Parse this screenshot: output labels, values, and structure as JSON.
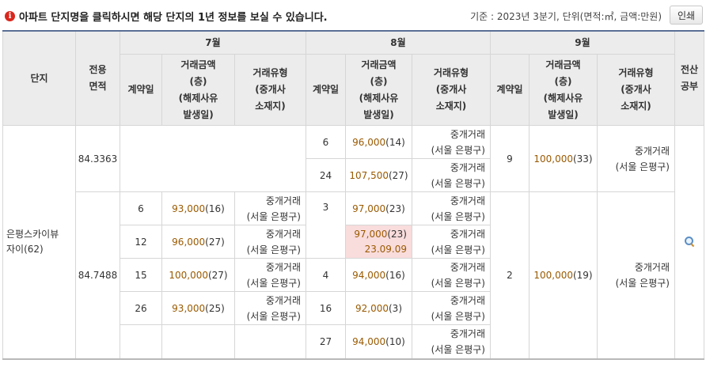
{
  "notice": "아파트 단지명을 클릭하시면 해당 단지의 1년 정보를 보실 수 있습니다.",
  "basis": "기준 : 2023년 3분기, 단위(면적:㎡, 금액:만원)",
  "print_label": "인쇄",
  "icons": {
    "notice": "info-icon",
    "detail": "magnifier-icon"
  },
  "header": {
    "complex": "단지",
    "area": "전용\n면적",
    "months": [
      "7월",
      "8월",
      "9월"
    ],
    "contract_day": "계약일",
    "amount": "거래금액\n(층)\n(해제사유\n발생일)",
    "deal_type": "거래유형\n(중개사\n소재지)",
    "public": "전산\n공부"
  },
  "complex_name": "은평스카이뷰\n자이(62)",
  "group1": {
    "area": "84.3363",
    "aug": [
      {
        "day": "6",
        "price": "96,000",
        "floor": "(14)",
        "type": "중개거래\n(서울 은평구)"
      },
      {
        "day": "24",
        "price": "107,500",
        "floor": "(27)",
        "type": "중개거래\n(서울 은평구)"
      }
    ],
    "sep": {
      "day": "9",
      "price": "100,000",
      "floor": "(33)",
      "type": "중개거래\n(서울 은평구)"
    }
  },
  "group2": {
    "area": "84.7488",
    "jul": [
      {
        "day": "6",
        "price": "93,000",
        "floor": "(16)",
        "type": "중개거래\n(서울 은평구)"
      },
      {
        "day": "12",
        "price": "96,000",
        "floor": "(27)",
        "type": "중개거래\n(서울 은평구)"
      },
      {
        "day": "15",
        "price": "100,000",
        "floor": "(27)",
        "type": "중개거래\n(서울 은평구)"
      },
      {
        "day": "26",
        "price": "93,000",
        "floor": "(25)",
        "type": "중개거래\n(서울 은평구)"
      }
    ],
    "aug": [
      {
        "day": "3",
        "price": "97,000",
        "floor": "(23)",
        "type": "중개거래\n(서울 은평구)"
      },
      {
        "price": "97,000",
        "floor": "(23)",
        "cancel_date": "23.09.09",
        "type": "중개거래\n(서울 은평구)"
      },
      {
        "day": "4",
        "price": "94,000",
        "floor": "(16)",
        "type": "중개거래\n(서울 은평구)"
      },
      {
        "day": "16",
        "price": "92,000",
        "floor": "(3)",
        "type": "중개거래\n(서울 은평구)"
      },
      {
        "day": "27",
        "price": "94,000",
        "floor": "(10)",
        "type": "중개거래\n(서울 은평구)"
      }
    ],
    "sep": {
      "day": "2",
      "price": "100,000",
      "floor": "(19)",
      "type": "중개거래\n(서울 은평구)"
    }
  }
}
